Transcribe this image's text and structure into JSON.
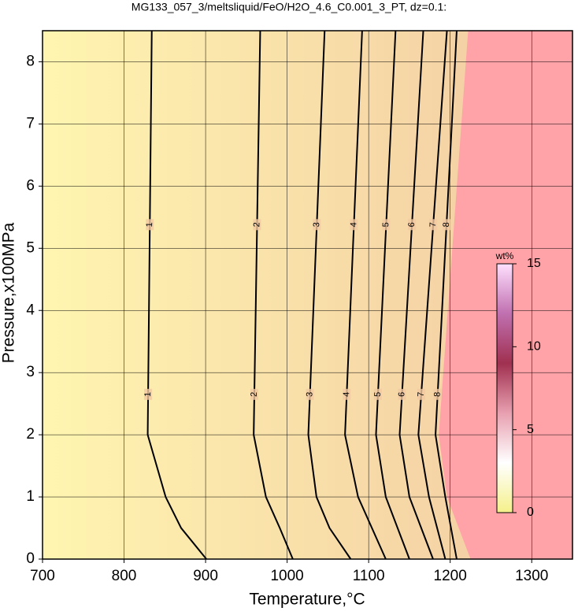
{
  "chart_data": {
    "type": "contour",
    "title": "MG133_057_3/meltsliquid/FeO/H2O_4.6_C0.001_3_PT, dz=0.1:",
    "x_label": "Temperature,°C",
    "y_label": "Pressure,x100MPa",
    "xlim": [
      700,
      1350
    ],
    "ylim": [
      0,
      8.5
    ],
    "xticks": [
      700,
      800,
      900,
      1000,
      1100,
      1200,
      1300
    ],
    "yticks": [
      0,
      1,
      2,
      3,
      4,
      5,
      6,
      7,
      8
    ],
    "grid": true,
    "fill_colors": [
      "#fff5b0",
      "#f2c9a2"
    ],
    "region": {
      "color": "#ffa3a8",
      "x": [
        1225,
        1196,
        1186,
        1222
      ],
      "y": [
        0,
        1,
        2,
        8.5
      ]
    },
    "series": [
      {
        "name": "1",
        "color": "#000000",
        "x": [
          901,
          870,
          851,
          829,
          834
        ],
        "y": [
          0,
          0.5,
          1,
          2,
          8.5
        ]
      },
      {
        "name": "2",
        "color": "#000000",
        "x": [
          1007,
          991,
          974,
          959,
          967
        ],
        "y": [
          0,
          0.5,
          1,
          2,
          8.5
        ]
      },
      {
        "name": "3",
        "color": "#000000",
        "x": [
          1078,
          1052,
          1036,
          1026,
          1046
        ],
        "y": [
          0,
          0.5,
          1,
          2,
          8.5
        ]
      },
      {
        "name": "4",
        "color": "#000000",
        "x": [
          1121,
          1087,
          1071,
          1092
        ],
        "y": [
          0,
          1,
          2,
          8.5
        ]
      },
      {
        "name": "5",
        "color": "#000000",
        "x": [
          1150,
          1121,
          1109,
          1133
        ],
        "y": [
          0,
          1,
          2,
          8.5
        ]
      },
      {
        "name": "6",
        "color": "#000000",
        "x": [
          1179,
          1150,
          1138,
          1167
        ],
        "y": [
          0,
          1,
          2,
          8.5
        ]
      },
      {
        "name": "7",
        "color": "#000000",
        "x": [
          1194,
          1174,
          1161,
          1196
        ],
        "y": [
          0,
          1,
          2,
          8.5
        ]
      },
      {
        "name": "8",
        "color": "#000000",
        "x": [
          1208,
          1194,
          1182,
          1208
        ],
        "y": [
          0,
          1,
          2,
          8.5
        ]
      }
    ],
    "colorbar": {
      "label": "wt%",
      "lim": [
        0,
        15
      ],
      "ticks": [
        0,
        5,
        10,
        15
      ],
      "colors": [
        "#f5f08a",
        "#ffffff",
        "#e8a0b0",
        "#a03050",
        "#c070b0",
        "#ffe0ff"
      ]
    }
  }
}
